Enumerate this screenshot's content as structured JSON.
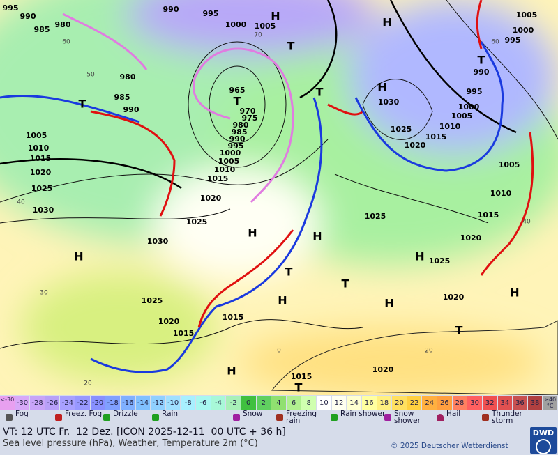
{
  "map": {
    "pressure_labels": [
      "995",
      "990",
      "985",
      "980",
      "990",
      "995",
      "1000",
      "1005",
      "1005",
      "1000",
      "995",
      "990",
      "995",
      "1000",
      "1005",
      "1010",
      "1015",
      "1020",
      "1025",
      "1030",
      "1005",
      "1010",
      "1015",
      "1020",
      "1025",
      "1025",
      "980",
      "985",
      "990",
      "965",
      "970",
      "975",
      "980",
      "985",
      "990",
      "995",
      "1000",
      "1005",
      "1010",
      "1015",
      "1020",
      "1025",
      "1030",
      "1005",
      "1010",
      "1015",
      "1020",
      "1025",
      "1030",
      "1025",
      "1020",
      "1015",
      "1015",
      "1015",
      "1020",
      "1020"
    ],
    "centers": [
      "H",
      "H",
      "H",
      "H",
      "H",
      "H",
      "H",
      "H",
      "H",
      "H",
      "H",
      "T",
      "T",
      "T",
      "T",
      "T",
      "T",
      "T",
      "T",
      "T"
    ],
    "temperature_labels": [
      "50",
      "40",
      "30",
      "20",
      "60",
      "70",
      "0",
      "40",
      "60",
      "20"
    ],
    "scale": {
      "labels": [
        "<-30",
        "-30",
        "-28",
        "-26",
        "-24",
        "-22",
        "-20",
        "-18",
        "-16",
        "-14",
        "-12",
        "-10",
        "-8",
        "-6",
        "-4",
        "-2",
        "0",
        "2",
        "4",
        "6",
        "8",
        "10",
        "12",
        "14",
        "16",
        "18",
        "20",
        "22",
        "24",
        "26",
        "28",
        "30",
        "32",
        "34",
        "36",
        "38",
        "≥40 °C"
      ],
      "colors": [
        "#e8a0f0",
        "#d8a8f8",
        "#c8a4f8",
        "#b8a0f8",
        "#a8a0ff",
        "#9898ff",
        "#8890ff",
        "#80a0ff",
        "#80b0ff",
        "#80c0ff",
        "#90d0ff",
        "#a0e0ff",
        "#a8f0ff",
        "#a8f8f0",
        "#a8f8d8",
        "#a8f0b8",
        "#40c040",
        "#60d060",
        "#90e070",
        "#b0f090",
        "#d0ffb0",
        "#ffffff",
        "#fffff0",
        "#ffffd0",
        "#ffffa0",
        "#fff080",
        "#ffe060",
        "#ffd040",
        "#ffb040",
        "#ffa040",
        "#ff8060",
        "#ff6060",
        "#f05050",
        "#e05050",
        "#c85050",
        "#b04040",
        "#a0a0a0"
      ]
    },
    "legend": [
      "Fog",
      "Freez. Fog",
      "Drizzle",
      "Rain",
      "Snow",
      "Freezing rain",
      "Rain shower",
      "Snow shower",
      "Hail",
      "Thunder storm"
    ],
    "footer": {
      "valid_time": "VT: 12 UTC Fr.  12 Dez. [ICON 2025-12-11  00 UTC + 36 h]",
      "description": "Sea level pressure (hPa), Weather, Temperature 2m (°C)",
      "copyright": "© 2025 Deutscher Wetterdienst",
      "logo": "DWD"
    }
  }
}
